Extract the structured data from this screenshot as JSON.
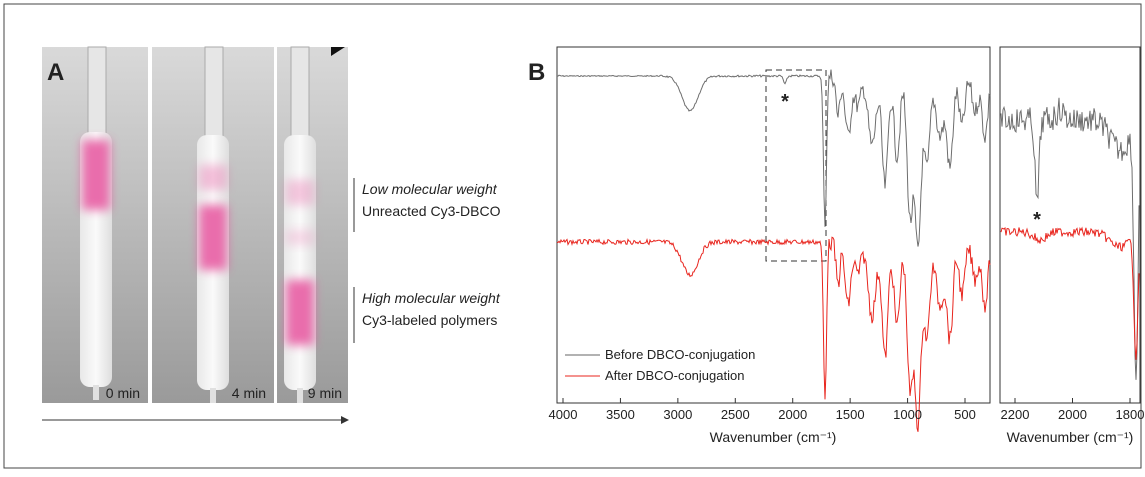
{
  "panel_a": {
    "label": "A",
    "times": [
      "0 min",
      "4 min",
      "9 min"
    ],
    "annotations": [
      {
        "title": "Low molecular weight",
        "text": "Unreacted Cy3-DBCO"
      },
      {
        "title": "High molecular weight",
        "text": "Cy3-labeled polymers"
      }
    ]
  },
  "panel_b": {
    "label": "B",
    "main": {
      "xticks": [
        4000,
        3500,
        3000,
        2500,
        2000,
        1500,
        1000,
        500
      ],
      "xlabel": "Wavenumber (cm⁻¹)",
      "marker": "*"
    },
    "inset": {
      "xticks": [
        2200,
        2000,
        1800
      ],
      "xlabel": "Wavenumber (cm⁻¹)",
      "marker": "*"
    },
    "legend": [
      "Before DBCO-conjugation",
      "After DBCO-conjugation"
    ]
  }
}
